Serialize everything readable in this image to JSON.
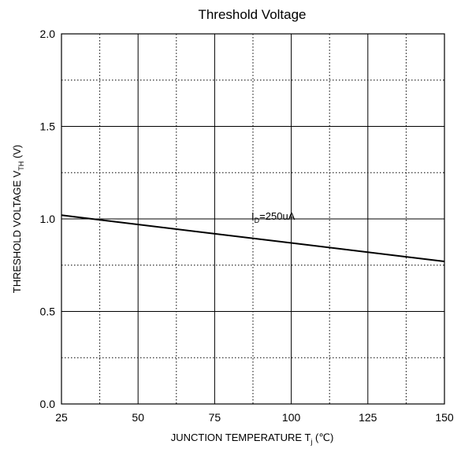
{
  "chart_data": {
    "type": "line",
    "title": "Threshold Voltage",
    "xlabel": {
      "main": "JUNCTION TEMPERATURE T",
      "sub": "j",
      "unit": " (℃)"
    },
    "ylabel": {
      "main": "THRESHOLD VOLTAGE V",
      "sub": "TH",
      "unit": " (V)"
    },
    "xlim": [
      25,
      150
    ],
    "ylim": [
      0.0,
      2.0
    ],
    "x_ticks": [
      25,
      50,
      75,
      100,
      125,
      150
    ],
    "x_tick_labels": [
      "25",
      "50",
      "75",
      "100",
      "125",
      "150"
    ],
    "y_ticks": [
      0.0,
      0.5,
      1.0,
      1.5,
      2.0
    ],
    "y_tick_labels": [
      "0.0",
      "0.5",
      "1.0",
      "1.5",
      "2.0"
    ],
    "grid": true,
    "series": [
      {
        "x": [
          25,
          150
        ],
        "y": [
          1.02,
          0.77
        ]
      }
    ],
    "annotation": {
      "main": "I",
      "sub": "D",
      "rest": "=250uA",
      "x": 87,
      "y": 0.995
    }
  }
}
